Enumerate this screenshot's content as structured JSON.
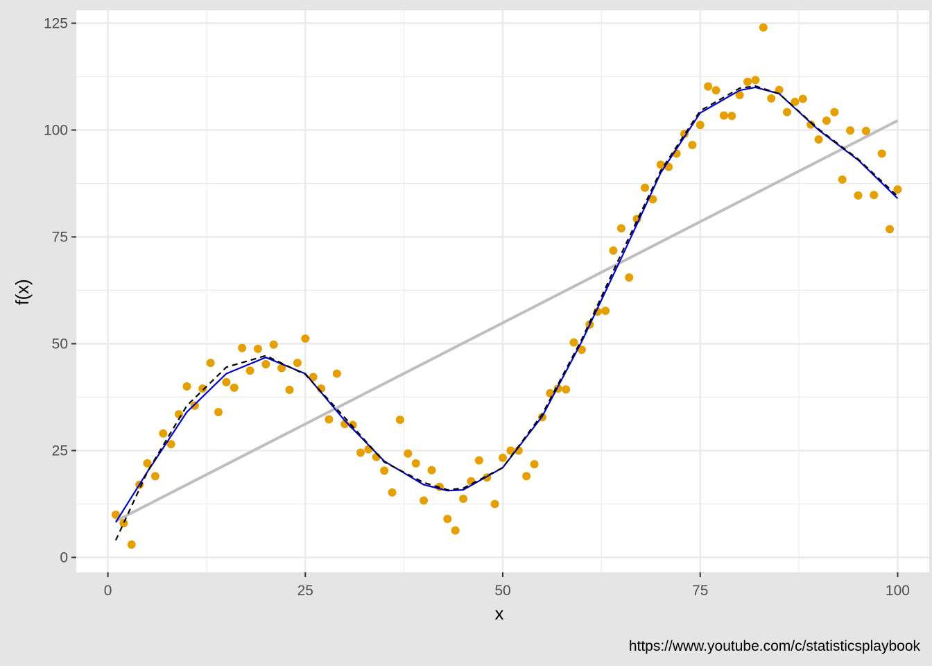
{
  "chart_data": {
    "type": "scatter",
    "title": "",
    "xlabel": "x",
    "ylabel": "f(x)",
    "caption": "https://www.youtube.com/c/statisticsplaybook",
    "xlim": [
      -4,
      104
    ],
    "ylim": [
      -3.5,
      128
    ],
    "x_ticks": [
      0,
      25,
      50,
      75,
      100
    ],
    "y_ticks": [
      0,
      25,
      50,
      75,
      100,
      125
    ],
    "grid": true,
    "legend": "none",
    "colors": {
      "panel": "#ffffff",
      "plot_background": "#e5e5e5",
      "grid": "#ebebeb",
      "points": "#E69F00",
      "linear_fit": "#bebebe",
      "smooth_fit": "#0000cc",
      "true_function": "#000000"
    },
    "series": [
      {
        "type": "scatter",
        "x": [
          1,
          2,
          3,
          4,
          5,
          6,
          7,
          8,
          9,
          10,
          11,
          12,
          13,
          14,
          15,
          16,
          17,
          18,
          19,
          20,
          21,
          22,
          23,
          24,
          25,
          26,
          27,
          28,
          29,
          30,
          31,
          32,
          33,
          34,
          35,
          36,
          37,
          38,
          39,
          40,
          41,
          42,
          43,
          44,
          45,
          46,
          47,
          48,
          49,
          50,
          51,
          52,
          53,
          54,
          55,
          56,
          57,
          58,
          59,
          60,
          61,
          62,
          63,
          64,
          65,
          66,
          67,
          68,
          69,
          70,
          71,
          72,
          73,
          74,
          75,
          76,
          77,
          78,
          79,
          80,
          81,
          82,
          83,
          84,
          85,
          86,
          87,
          88,
          89,
          90,
          91,
          92,
          93,
          94,
          95,
          96,
          97,
          98,
          99,
          100
        ],
        "y": [
          10,
          8,
          3,
          17,
          22,
          19,
          29,
          26.5,
          33.5,
          40,
          35.5,
          39.5,
          45.5,
          34,
          41,
          39.7,
          49,
          43.7,
          48.8,
          45.2,
          49.8,
          44.3,
          39.2,
          45.5,
          51.2,
          42.2,
          39.5,
          32.3,
          43,
          31.2,
          31,
          24.5,
          25.3,
          23.5,
          20.3,
          15.2,
          32.2,
          24.3,
          22,
          13.3,
          20.4,
          16.5,
          9,
          6.3,
          13.7,
          17.8,
          22.7,
          18.7,
          12.5,
          23.3,
          25,
          25,
          19,
          21.8,
          32.8,
          38.4,
          39.5,
          39.3,
          50.3,
          48.6,
          54.5,
          57.5,
          57.7,
          71.8,
          77,
          65.5,
          79.2,
          86.5,
          83.8,
          91.9,
          91.4,
          94.5,
          99.1,
          96.5,
          101.2,
          110.2,
          109.3,
          103.4,
          103.3,
          108.2,
          111.3,
          111.7,
          124,
          107.4,
          109.4,
          104.2,
          106.6,
          107.3,
          101.3,
          97.8,
          102.2,
          104.2,
          88.4,
          99.9,
          84.7,
          99.8,
          84.8,
          94.5,
          76.8,
          86.1
        ]
      },
      {
        "type": "line",
        "style": "solid",
        "x": [
          1,
          100
        ],
        "y": [
          8.5,
          102.2
        ]
      },
      {
        "type": "line",
        "style": "solid",
        "x": [
          1,
          5,
          10,
          15,
          20,
          25,
          30,
          35,
          40,
          43,
          45,
          50,
          55,
          60,
          65,
          70,
          75,
          80,
          82,
          85,
          90,
          95,
          100
        ],
        "y": [
          8.2,
          20,
          34,
          43,
          46.8,
          43,
          32,
          22.5,
          17,
          15.6,
          15.8,
          21,
          33,
          50.5,
          70,
          90,
          104,
          109.3,
          110,
          108.5,
          100,
          93,
          84
        ]
      },
      {
        "type": "line",
        "style": "dashed",
        "x": [
          1,
          5,
          10,
          15,
          20,
          25,
          30,
          35,
          40,
          43,
          45,
          50,
          55,
          60,
          65,
          70,
          75,
          80,
          82,
          85,
          90,
          95,
          100
        ],
        "y": [
          4,
          20,
          35.5,
          44.5,
          47.2,
          42.8,
          32.7,
          22.3,
          17.5,
          15.8,
          16.2,
          21,
          33.5,
          51,
          71,
          90.5,
          104.5,
          109.8,
          110.3,
          108.5,
          100.2,
          93.2,
          84.5
        ]
      }
    ]
  }
}
